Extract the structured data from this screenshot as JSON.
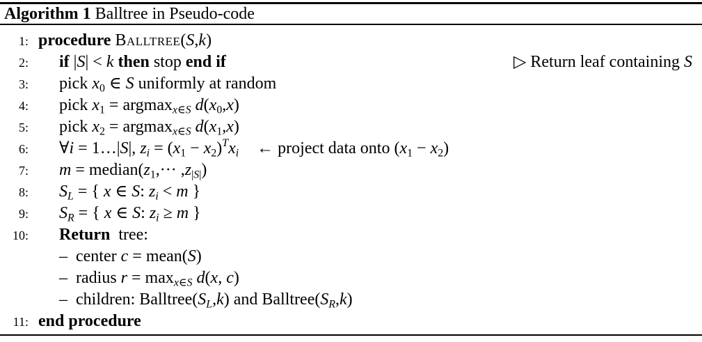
{
  "header": {
    "label": "Algorithm 1",
    "title": " Balltree in Pseudo-code"
  },
  "symbols": {
    "comment_triangle": "▷",
    "arrow_left": "←",
    "bullet_dash": "–"
  },
  "lines": [
    {
      "num": "1:",
      "indent": 0,
      "body": [
        {
          "t": "procedure ",
          "s": "bf"
        },
        {
          "t": "Balltree",
          "s": "sc"
        },
        {
          "t": "(",
          "s": "rm"
        },
        {
          "t": "S",
          "s": "it"
        },
        {
          "t": ",",
          "s": "rm"
        },
        {
          "t": "k",
          "s": "it"
        },
        {
          "t": ")",
          "s": "rm"
        }
      ]
    },
    {
      "num": "2:",
      "indent": 1,
      "body": [
        {
          "t": "if ",
          "s": "bf"
        },
        {
          "t": "|",
          "s": "rm"
        },
        {
          "t": "S",
          "s": "it"
        },
        {
          "t": "| < ",
          "s": "rm"
        },
        {
          "t": "k",
          "s": "it"
        },
        {
          "t": " then ",
          "s": "bf"
        },
        {
          "t": "stop ",
          "s": "rm"
        },
        {
          "t": "end if",
          "s": "bf"
        }
      ],
      "comment_right": [
        {
          "t": "▷ Return leaf containing ",
          "s": "rm"
        },
        {
          "t": "S",
          "s": "it"
        }
      ]
    },
    {
      "num": "3:",
      "indent": 1,
      "body": [
        {
          "t": "pick ",
          "s": "rm"
        },
        {
          "t": "x",
          "s": "it"
        },
        {
          "t": "0",
          "s": "sub"
        },
        {
          "t": " ∈ ",
          "s": "rm"
        },
        {
          "t": "S",
          "s": "it"
        },
        {
          "t": " uniformly at random",
          "s": "rm"
        }
      ]
    },
    {
      "num": "4:",
      "indent": 1,
      "body": [
        {
          "t": "pick ",
          "s": "rm"
        },
        {
          "t": "x",
          "s": "it"
        },
        {
          "t": "1",
          "s": "sub"
        },
        {
          "t": " = argmax",
          "s": "rm"
        },
        {
          "t": "x",
          "s": "subit"
        },
        {
          "t": "∈",
          "s": "sub"
        },
        {
          "t": "S",
          "s": "subit"
        },
        {
          "t": " ",
          "s": "rm"
        },
        {
          "t": "d",
          "s": "it"
        },
        {
          "t": "(",
          "s": "rm"
        },
        {
          "t": "x",
          "s": "it"
        },
        {
          "t": "0",
          "s": "sub"
        },
        {
          "t": ",",
          "s": "rm"
        },
        {
          "t": "x",
          "s": "it"
        },
        {
          "t": ")",
          "s": "rm"
        }
      ]
    },
    {
      "num": "5:",
      "indent": 1,
      "body": [
        {
          "t": "pick ",
          "s": "rm"
        },
        {
          "t": "x",
          "s": "it"
        },
        {
          "t": "2",
          "s": "sub"
        },
        {
          "t": " = argmax",
          "s": "rm"
        },
        {
          "t": "x",
          "s": "subit"
        },
        {
          "t": "∈",
          "s": "sub"
        },
        {
          "t": "S",
          "s": "subit"
        },
        {
          "t": " ",
          "s": "rm"
        },
        {
          "t": "d",
          "s": "it"
        },
        {
          "t": "(",
          "s": "rm"
        },
        {
          "t": "x",
          "s": "it"
        },
        {
          "t": "1",
          "s": "sub"
        },
        {
          "t": ",",
          "s": "rm"
        },
        {
          "t": "x",
          "s": "it"
        },
        {
          "t": ")",
          "s": "rm"
        }
      ]
    },
    {
      "num": "6:",
      "indent": 1,
      "body": [
        {
          "t": "∀",
          "s": "rm"
        },
        {
          "t": "i",
          "s": "it"
        },
        {
          "t": " = 1…|",
          "s": "rm"
        },
        {
          "t": "S",
          "s": "it"
        },
        {
          "t": "|, ",
          "s": "rm"
        },
        {
          "t": "z",
          "s": "it"
        },
        {
          "t": "i",
          "s": "subit"
        },
        {
          "t": " = (",
          "s": "rm"
        },
        {
          "t": "x",
          "s": "it"
        },
        {
          "t": "1",
          "s": "sub"
        },
        {
          "t": " − ",
          "s": "rm"
        },
        {
          "t": "x",
          "s": "it"
        },
        {
          "t": "2",
          "s": "sub"
        },
        {
          "t": ")",
          "s": "rm"
        },
        {
          "t": "T",
          "s": "supit"
        },
        {
          "t": "x",
          "s": "it"
        },
        {
          "t": "i",
          "s": "subit"
        }
      ],
      "comment_inline": [
        {
          "t": "← project data onto (",
          "s": "rm"
        },
        {
          "t": "x",
          "s": "it"
        },
        {
          "t": "1",
          "s": "sub"
        },
        {
          "t": " − ",
          "s": "rm"
        },
        {
          "t": "x",
          "s": "it"
        },
        {
          "t": "2",
          "s": "sub"
        },
        {
          "t": ")",
          "s": "rm"
        }
      ]
    },
    {
      "num": "7:",
      "indent": 1,
      "body": [
        {
          "t": "m",
          "s": "it"
        },
        {
          "t": " = median(",
          "s": "rm"
        },
        {
          "t": "z",
          "s": "it"
        },
        {
          "t": "1",
          "s": "sub"
        },
        {
          "t": ",··· ,",
          "s": "rm"
        },
        {
          "t": "z",
          "s": "it"
        },
        {
          "t": "|",
          "s": "sub"
        },
        {
          "t": "S",
          "s": "subit"
        },
        {
          "t": "|",
          "s": "sub"
        },
        {
          "t": ")",
          "s": "rm"
        }
      ]
    },
    {
      "num": "8:",
      "indent": 1,
      "body": [
        {
          "t": "S",
          "s": "it"
        },
        {
          "t": "L",
          "s": "subit"
        },
        {
          "t": " = { ",
          "s": "rm"
        },
        {
          "t": "x",
          "s": "it"
        },
        {
          "t": " ∈ ",
          "s": "rm"
        },
        {
          "t": "S",
          "s": "it"
        },
        {
          "t": ": ",
          "s": "rm"
        },
        {
          "t": "z",
          "s": "it"
        },
        {
          "t": "i",
          "s": "subit"
        },
        {
          "t": " < ",
          "s": "rm"
        },
        {
          "t": "m",
          "s": "it"
        },
        {
          "t": " }",
          "s": "rm"
        }
      ]
    },
    {
      "num": "9:",
      "indent": 1,
      "body": [
        {
          "t": "S",
          "s": "it"
        },
        {
          "t": "R",
          "s": "subit"
        },
        {
          "t": " = { ",
          "s": "rm"
        },
        {
          "t": "x",
          "s": "it"
        },
        {
          "t": " ∈ ",
          "s": "rm"
        },
        {
          "t": "S",
          "s": "it"
        },
        {
          "t": ": ",
          "s": "rm"
        },
        {
          "t": "z",
          "s": "it"
        },
        {
          "t": "i",
          "s": "subit"
        },
        {
          "t": " ≥ ",
          "s": "rm"
        },
        {
          "t": "m",
          "s": "it"
        },
        {
          "t": " }",
          "s": "rm"
        }
      ]
    },
    {
      "num": "10:",
      "indent": 1,
      "body": [
        {
          "t": "Return",
          "s": "bf"
        },
        {
          "t": "  tree:",
          "s": "rm"
        }
      ]
    },
    {
      "num": "",
      "indent": 2,
      "marker": "–",
      "body": [
        {
          "t": "center ",
          "s": "rm"
        },
        {
          "t": "c",
          "s": "it"
        },
        {
          "t": " = mean(",
          "s": "rm"
        },
        {
          "t": "S",
          "s": "it"
        },
        {
          "t": ")",
          "s": "rm"
        }
      ]
    },
    {
      "num": "",
      "indent": 2,
      "marker": "–",
      "body": [
        {
          "t": "radius ",
          "s": "rm"
        },
        {
          "t": "r",
          "s": "it"
        },
        {
          "t": " = max",
          "s": "rm"
        },
        {
          "t": "x",
          "s": "subit"
        },
        {
          "t": "∈",
          "s": "sub"
        },
        {
          "t": "S",
          "s": "subit"
        },
        {
          "t": " ",
          "s": "rm"
        },
        {
          "t": "d",
          "s": "it"
        },
        {
          "t": "(",
          "s": "rm"
        },
        {
          "t": "x",
          "s": "it"
        },
        {
          "t": ", ",
          "s": "rm"
        },
        {
          "t": "c",
          "s": "it"
        },
        {
          "t": ")",
          "s": "rm"
        }
      ]
    },
    {
      "num": "",
      "indent": 2,
      "marker": "–",
      "body": [
        {
          "t": "children: Balltree(",
          "s": "rm"
        },
        {
          "t": "S",
          "s": "it"
        },
        {
          "t": "L",
          "s": "subit"
        },
        {
          "t": ",",
          "s": "rm"
        },
        {
          "t": "k",
          "s": "it"
        },
        {
          "t": ") and Balltree(",
          "s": "rm"
        },
        {
          "t": "S",
          "s": "it"
        },
        {
          "t": "R",
          "s": "subit"
        },
        {
          "t": ",",
          "s": "rm"
        },
        {
          "t": "k",
          "s": "it"
        },
        {
          "t": ")",
          "s": "rm"
        }
      ]
    },
    {
      "num": "11:",
      "indent": 0,
      "body": [
        {
          "t": "end procedure",
          "s": "bf"
        }
      ]
    }
  ]
}
